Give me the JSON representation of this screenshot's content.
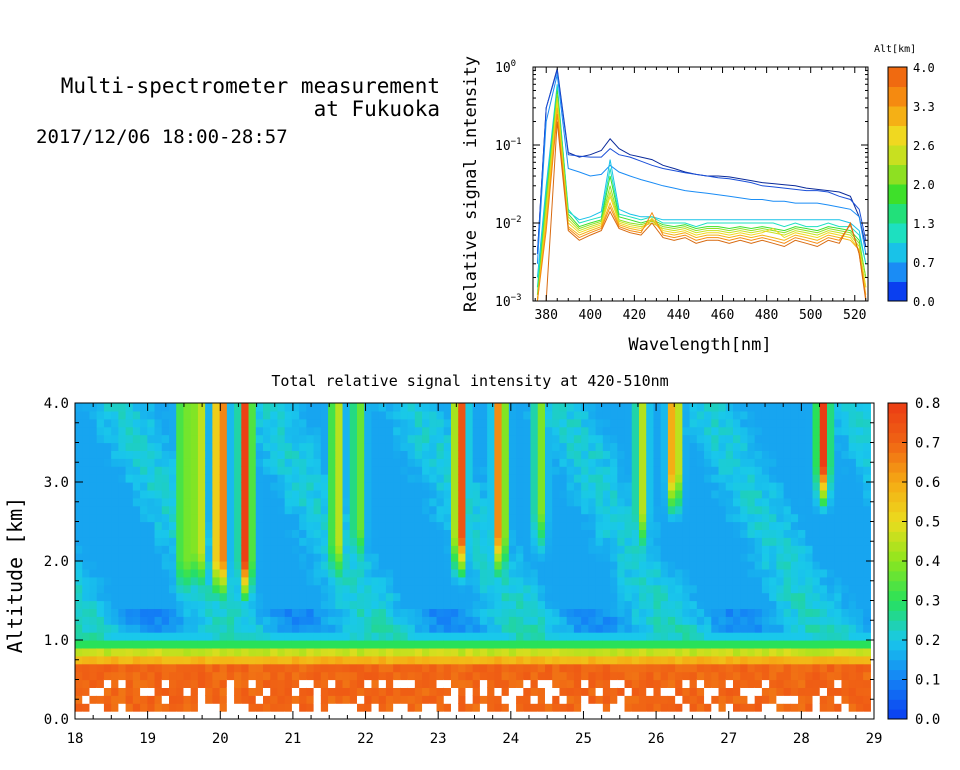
{
  "header": {
    "title_line1": "Multi-spectrometer measurement",
    "title_line2": "at Fukuoka",
    "date_range": "2017/12/06 18:00-28:57"
  },
  "chart_data": [
    {
      "type": "line",
      "xlabel": "Wavelength[nm]",
      "ylabel": "Relative signal intensity",
      "xlim": [
        374,
        526
      ],
      "ylim": [
        0.001,
        1
      ],
      "yscale": "log",
      "x_ticks": [
        "380",
        "400",
        "420",
        "440",
        "460",
        "480",
        "500",
        "520"
      ],
      "y_ticks": [
        {
          "value": 1,
          "base": "10",
          "exp": "0"
        },
        {
          "value": 0.1,
          "base": "10",
          "exp": "−1"
        },
        {
          "value": 0.01,
          "base": "10",
          "exp": "−2"
        },
        {
          "value": 0.001,
          "base": "10",
          "exp": "−3"
        }
      ],
      "colorbar_label": "Alt[km]",
      "colorbar_ticks": [
        "0.0",
        "0.7",
        "1.3",
        "2.0",
        "2.6",
        "3.3",
        "4.0"
      ],
      "colorbar_colors": [
        "#0a3ff0",
        "#1a8cf5",
        "#19c2e8",
        "#1de0c0",
        "#22e07a",
        "#3ee02a",
        "#8ee022",
        "#c8e020",
        "#f0d820",
        "#f5b015",
        "#f58a10",
        "#f06a10"
      ],
      "x": [
        376,
        380,
        385,
        390,
        395,
        400,
        405,
        409,
        413,
        418,
        423,
        428,
        433,
        438,
        443,
        448,
        453,
        458,
        463,
        468,
        473,
        478,
        483,
        488,
        493,
        498,
        503,
        508,
        513,
        518,
        522,
        525
      ],
      "series": [
        {
          "color": "#0a2a9a",
          "values": [
            0.004,
            0.3,
            0.95,
            0.08,
            0.07,
            0.075,
            0.085,
            0.12,
            0.09,
            0.075,
            0.07,
            0.065,
            0.055,
            0.05,
            0.045,
            0.042,
            0.04,
            0.04,
            0.039,
            0.037,
            0.035,
            0.033,
            0.032,
            0.031,
            0.03,
            0.028,
            0.027,
            0.026,
            0.025,
            0.022,
            0.012,
            0.005
          ]
        },
        {
          "color": "#1a4fd8",
          "values": [
            0.004,
            0.3,
            0.9,
            0.075,
            0.072,
            0.07,
            0.07,
            0.09,
            0.075,
            0.07,
            0.062,
            0.055,
            0.05,
            0.047,
            0.044,
            0.042,
            0.04,
            0.038,
            0.037,
            0.035,
            0.033,
            0.03,
            0.029,
            0.028,
            0.027,
            0.026,
            0.026,
            0.025,
            0.022,
            0.02,
            0.015,
            0.006
          ]
        },
        {
          "color": "#1a8cf5",
          "values": [
            0.003,
            0.2,
            0.8,
            0.05,
            0.045,
            0.04,
            0.042,
            0.055,
            0.045,
            0.04,
            0.036,
            0.033,
            0.03,
            0.028,
            0.026,
            0.025,
            0.024,
            0.023,
            0.022,
            0.021,
            0.02,
            0.02,
            0.019,
            0.019,
            0.018,
            0.018,
            0.018,
            0.017,
            0.016,
            0.015,
            0.012,
            0.004
          ]
        },
        {
          "color": "#19c2e8",
          "values": [
            0.002,
            0.03,
            0.6,
            0.014,
            0.011,
            0.012,
            0.014,
            0.065,
            0.015,
            0.013,
            0.012,
            0.012,
            0.011,
            0.011,
            0.011,
            0.011,
            0.011,
            0.011,
            0.011,
            0.011,
            0.011,
            0.011,
            0.011,
            0.011,
            0.011,
            0.011,
            0.011,
            0.011,
            0.011,
            0.01,
            0.008,
            0.003
          ]
        },
        {
          "color": "#1de0c0",
          "values": [
            0.0015,
            0.025,
            0.55,
            0.015,
            0.01,
            0.011,
            0.012,
            0.05,
            0.013,
            0.012,
            0.011,
            0.012,
            0.01,
            0.01,
            0.01,
            0.009,
            0.01,
            0.01,
            0.01,
            0.01,
            0.01,
            0.01,
            0.01,
            0.009,
            0.01,
            0.009,
            0.009,
            0.01,
            0.009,
            0.009,
            0.007,
            0.003
          ]
        },
        {
          "color": "#3ee02a",
          "values": [
            0.0012,
            0.02,
            0.5,
            0.013,
            0.009,
            0.01,
            0.011,
            0.04,
            0.012,
            0.011,
            0.01,
            0.011,
            0.0095,
            0.009,
            0.0095,
            0.0085,
            0.009,
            0.009,
            0.0085,
            0.009,
            0.0085,
            0.009,
            0.0085,
            0.008,
            0.009,
            0.0085,
            0.008,
            0.009,
            0.0085,
            0.008,
            0.006,
            0.002
          ]
        },
        {
          "color": "#8ee022",
          "values": [
            0.001,
            0.018,
            0.45,
            0.012,
            0.0085,
            0.0095,
            0.0105,
            0.03,
            0.011,
            0.01,
            0.0095,
            0.0105,
            0.009,
            0.0085,
            0.009,
            0.008,
            0.0085,
            0.0085,
            0.008,
            0.0085,
            0.008,
            0.0085,
            0.008,
            0.0075,
            0.0085,
            0.008,
            0.0075,
            0.0085,
            0.008,
            0.0075,
            0.0055,
            0.002
          ]
        },
        {
          "color": "#c8e020",
          "values": [
            0.001,
            0.015,
            0.4,
            0.011,
            0.008,
            0.009,
            0.01,
            0.025,
            0.0105,
            0.0095,
            0.009,
            0.01,
            0.0085,
            0.008,
            0.0085,
            0.0075,
            0.008,
            0.008,
            0.0075,
            0.008,
            0.0075,
            0.008,
            0.0075,
            0.007,
            0.008,
            0.0075,
            0.007,
            0.008,
            0.0075,
            0.007,
            0.005,
            0.0015
          ]
        },
        {
          "color": "#f0d820",
          "values": [
            0.001,
            0.012,
            0.35,
            0.01,
            0.0075,
            0.0085,
            0.0095,
            0.022,
            0.01,
            0.009,
            0.0085,
            0.0115,
            0.008,
            0.0075,
            0.008,
            0.007,
            0.0075,
            0.0075,
            0.007,
            0.0075,
            0.007,
            0.0075,
            0.0085,
            0.0065,
            0.0075,
            0.007,
            0.0065,
            0.0075,
            0.007,
            0.0065,
            0.0045,
            0.0015
          ]
        },
        {
          "color": "#f5b015",
          "values": [
            0.001,
            0.01,
            0.3,
            0.009,
            0.007,
            0.008,
            0.009,
            0.018,
            0.0095,
            0.0085,
            0.008,
            0.011,
            0.0075,
            0.007,
            0.0075,
            0.0065,
            0.007,
            0.007,
            0.0065,
            0.007,
            0.0065,
            0.007,
            0.0065,
            0.006,
            0.007,
            0.0065,
            0.006,
            0.007,
            0.0065,
            0.006,
            0.0045,
            0.0012
          ]
        },
        {
          "color": "#f58a10",
          "values": [
            0.001,
            0.008,
            0.25,
            0.0085,
            0.0065,
            0.0075,
            0.0085,
            0.016,
            0.009,
            0.008,
            0.0075,
            0.0135,
            0.007,
            0.0065,
            0.007,
            0.006,
            0.0065,
            0.0065,
            0.006,
            0.0065,
            0.006,
            0.0065,
            0.006,
            0.0055,
            0.0065,
            0.006,
            0.0055,
            0.0065,
            0.006,
            0.0095,
            0.004,
            0.0011
          ]
        },
        {
          "color": "#d86a10",
          "values": [
            0.001,
            0.001,
            0.2,
            0.008,
            0.006,
            0.007,
            0.008,
            0.014,
            0.0085,
            0.0075,
            0.007,
            0.01,
            0.0065,
            0.006,
            0.0065,
            0.0055,
            0.006,
            0.006,
            0.0055,
            0.006,
            0.0055,
            0.006,
            0.0055,
            0.005,
            0.006,
            0.0055,
            0.005,
            0.006,
            0.0055,
            0.01,
            0.004,
            0.001
          ]
        }
      ]
    },
    {
      "type": "heatmap",
      "title": "Total relative signal intensity at 420-510nm",
      "ylabel": "Altitude [km]",
      "xlim": [
        18,
        29
      ],
      "ylim": [
        0,
        4
      ],
      "x_ticks": [
        "18",
        "19",
        "20",
        "21",
        "22",
        "23",
        "24",
        "25",
        "26",
        "27",
        "28",
        "29"
      ],
      "y_ticks": [
        "0.0",
        "1.0",
        "2.0",
        "3.0",
        "4.0"
      ],
      "data_time_range": [
        18,
        28.95
      ],
      "background_level": 0.15,
      "low_level_layer": {
        "bottom": 0.15,
        "top": 0.9,
        "value": 0.7
      },
      "plumes": [
        {
          "t": 19.5,
          "bottom": 1.4,
          "value": 0.45
        },
        {
          "t": 19.7,
          "bottom": 1.5,
          "value": 0.55
        },
        {
          "t": 20.0,
          "bottom": 1.4,
          "value": 0.8
        },
        {
          "t": 20.35,
          "bottom": 1.4,
          "value": 0.8
        },
        {
          "t": 21.6,
          "bottom": 1.6,
          "value": 0.5
        },
        {
          "t": 21.9,
          "bottom": 1.8,
          "value": 0.4
        },
        {
          "t": 23.3,
          "bottom": 1.7,
          "value": 0.8
        },
        {
          "t": 23.85,
          "bottom": 1.7,
          "value": 0.7
        },
        {
          "t": 24.4,
          "bottom": 2.0,
          "value": 0.4
        },
        {
          "t": 25.8,
          "bottom": 2.0,
          "value": 0.45
        },
        {
          "t": 26.25,
          "bottom": 2.5,
          "value": 0.7
        },
        {
          "t": 28.3,
          "bottom": 2.6,
          "value": 0.8
        }
      ],
      "colorbar_ticks": [
        "0.0",
        "0.1",
        "0.2",
        "0.3",
        "0.4",
        "0.5",
        "0.6",
        "0.7",
        "0.8"
      ],
      "colorbar_range": [
        0,
        0.8
      ]
    }
  ]
}
